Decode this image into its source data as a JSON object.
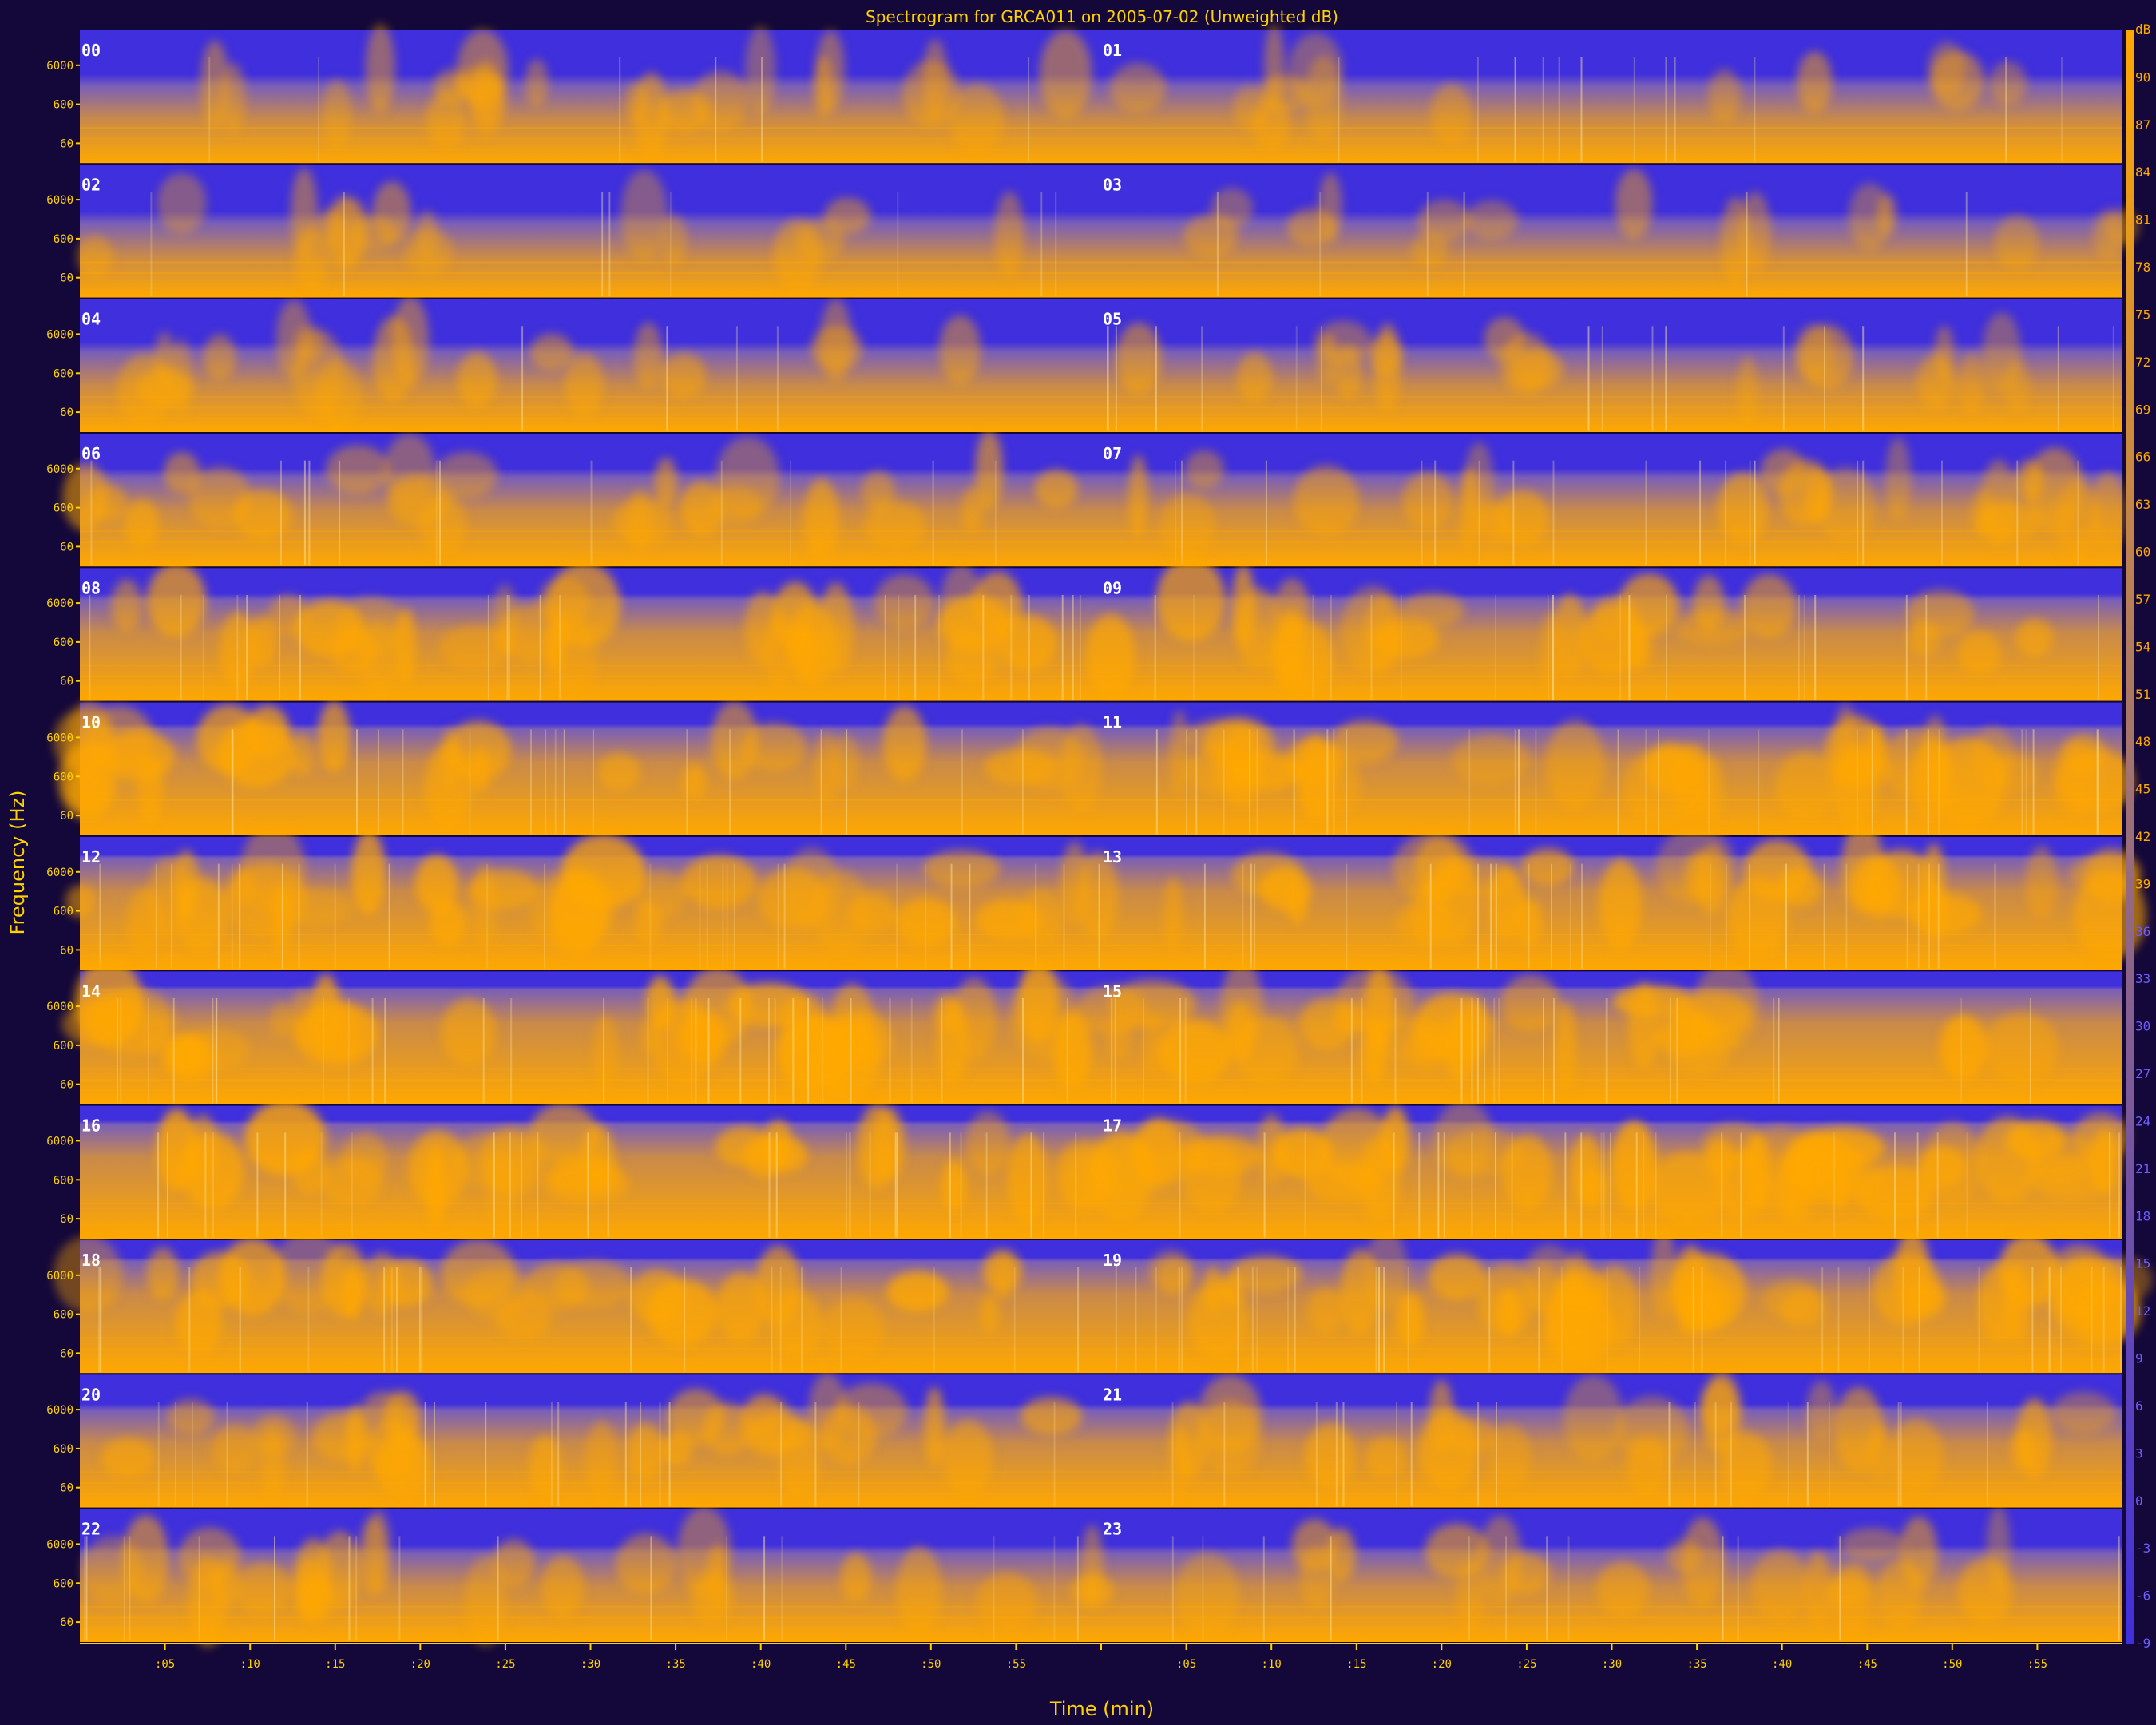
{
  "colors": {
    "background": "#14083a",
    "low": "#3f2fdc",
    "high": "#ffa800",
    "axis": "#ffd200"
  },
  "chart_data": {
    "type": "heatmap",
    "title": "Spectrogram for GRCA011 on 2005-07-02 (Unweighted dB)",
    "xlabel": "Time (min)",
    "ylabel": "Frequency (Hz)",
    "xlim": [
      0,
      60
    ],
    "y_scale": "log",
    "y_tick_labels": [
      "6000",
      "600",
      "60"
    ],
    "x_tick_labels": [
      ":05",
      ":10",
      ":15",
      ":20",
      ":25",
      ":30",
      ":35",
      ":40",
      ":45",
      ":50",
      ":55",
      "",
      ":05",
      ":10",
      ":15",
      ":20",
      ":25",
      ":30",
      ":35",
      ":40",
      ":45",
      ":50",
      ":55"
    ],
    "rows": [
      {
        "left_hour": "00",
        "right_hour": "01"
      },
      {
        "left_hour": "02",
        "right_hour": "03"
      },
      {
        "left_hour": "04",
        "right_hour": "05"
      },
      {
        "left_hour": "06",
        "right_hour": "07"
      },
      {
        "left_hour": "08",
        "right_hour": "09"
      },
      {
        "left_hour": "10",
        "right_hour": "11"
      },
      {
        "left_hour": "12",
        "right_hour": "13"
      },
      {
        "left_hour": "14",
        "right_hour": "15"
      },
      {
        "left_hour": "16",
        "right_hour": "17"
      },
      {
        "left_hour": "18",
        "right_hour": "19"
      },
      {
        "left_hour": "20",
        "right_hour": "21"
      },
      {
        "left_hour": "22",
        "right_hour": "23"
      }
    ],
    "row_activity": [
      0.3,
      0.24,
      0.34,
      0.5,
      0.7,
      0.78,
      0.86,
      0.92,
      0.92,
      0.86,
      0.62,
      0.48
    ],
    "colorbar": {
      "label": "dB",
      "ticks": [
        "90",
        "87",
        "84",
        "81",
        "78",
        "75",
        "72",
        "69",
        "66",
        "63",
        "60",
        "57",
        "54",
        "51",
        "48",
        "45",
        "42",
        "39",
        "36",
        "33",
        "30",
        "27",
        "24",
        "21",
        "18",
        "15",
        "12",
        "9",
        "6",
        "3",
        "0",
        "-3",
        "-6",
        "-9"
      ],
      "range": [
        -9,
        93
      ]
    },
    "grid": false,
    "legend": "none"
  }
}
